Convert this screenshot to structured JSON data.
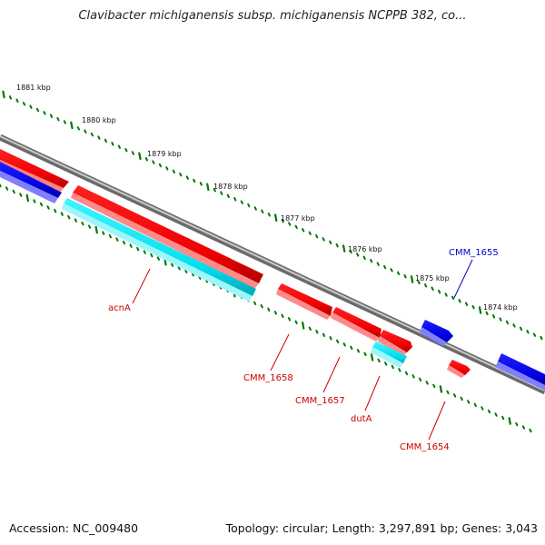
{
  "title": "Clavibacter michiganensis subsp. michiganensis NCPPB 382, co...",
  "footer": {
    "accession": "Accession: NC_009480",
    "summary": "Topology: circular; Length: 3,297,891 bp; Genes: 3,043"
  },
  "colors": {
    "forward_gene": "#ff0000",
    "forward_gene_light": "#ff8080",
    "reverse_gene": "#0000ee",
    "reverse_gene_light": "#8080ff",
    "rna_gene": "#00e5ee",
    "rna_gene_light": "#90f4f8",
    "backbone": "#808080",
    "tick": "#007700",
    "red_label": "#cc0000",
    "blue_label": "#0000cc"
  },
  "kbp_ticks": [
    "1881 kbp",
    "1880 kbp",
    "1879 kbp",
    "1878 kbp",
    "1877 kbp",
    "1876 kbp",
    "1875 kbp",
    "1874 kbp"
  ],
  "gene_labels": [
    {
      "name": "acnA",
      "color": "red"
    },
    {
      "name": "CMM_1658",
      "color": "red"
    },
    {
      "name": "CMM_1657",
      "color": "red"
    },
    {
      "name": "dutA",
      "color": "red"
    },
    {
      "name": "CMM_1654",
      "color": "red"
    },
    {
      "name": "CMM_1655",
      "color": "blue"
    }
  ]
}
